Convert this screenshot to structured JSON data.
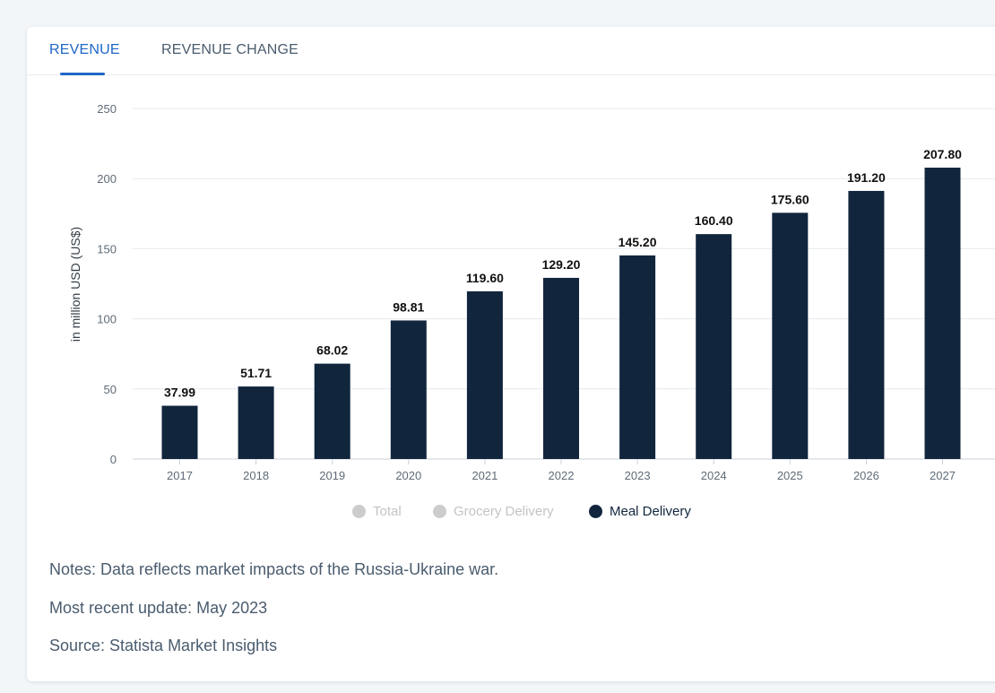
{
  "tabs": [
    {
      "label": "REVENUE",
      "active": true
    },
    {
      "label": "REVENUE CHANGE",
      "active": false
    }
  ],
  "legend": [
    {
      "label": "Total",
      "color": "#cccccc",
      "active": false
    },
    {
      "label": "Grocery Delivery",
      "color": "#cccccc",
      "active": false
    },
    {
      "label": "Meal Delivery",
      "color": "#11263d",
      "active": true
    }
  ],
  "notes": {
    "line1": "Notes: Data reflects market impacts of the Russia-Ukraine war.",
    "line2": "Most recent update: May 2023",
    "line3": "Source: Statista Market Insights"
  },
  "chart_data": {
    "type": "bar",
    "categories": [
      "2017",
      "2018",
      "2019",
      "2020",
      "2021",
      "2022",
      "2023",
      "2024",
      "2025",
      "2026",
      "2027"
    ],
    "series": [
      {
        "name": "Meal Delivery",
        "color": "#11263d",
        "values": [
          37.99,
          51.71,
          68.02,
          98.81,
          119.6,
          129.2,
          145.2,
          160.4,
          175.6,
          191.2,
          207.8
        ],
        "labels": [
          "37.99",
          "51.71",
          "68.02",
          "98.81",
          "119.60",
          "129.20",
          "145.20",
          "160.40",
          "175.60",
          "191.20",
          "207.80"
        ]
      }
    ],
    "ylabel": "in million USD (US$)",
    "ylim": [
      0,
      250
    ],
    "yticks": [
      "0",
      "50",
      "100",
      "150",
      "200",
      "250"
    ],
    "grid": true,
    "legend_position": "bottom"
  }
}
